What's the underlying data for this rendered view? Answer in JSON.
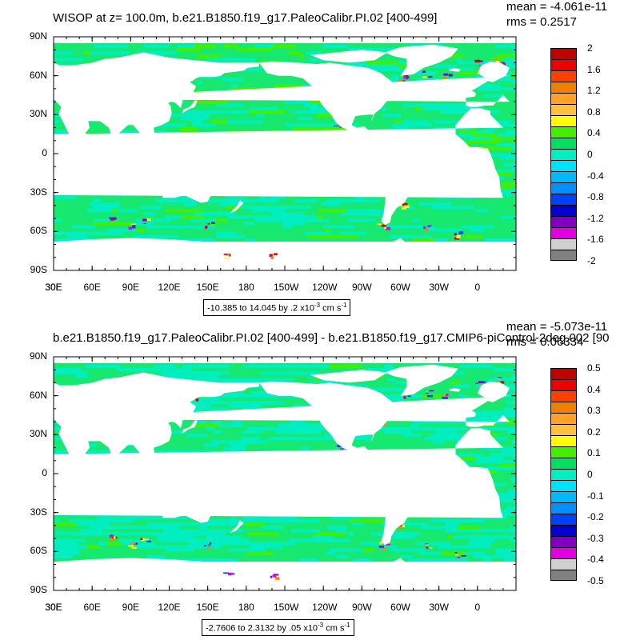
{
  "panel1": {
    "title": "WISOP at z= 100.0m, b.e21.B1850.f19_g17.PaleoCalibr.PI.02 [400-499]",
    "mean": "mean = -4.061e-11",
    "rms": "rms = 0.2517",
    "contour_info": "-10.385 to 14.045 by .2 x10",
    "contour_exp": "-3",
    "contour_units": " cm s",
    "contour_units_exp": "-1",
    "colorbar_labels": [
      "2",
      "1.6",
      "1.2",
      "0.8",
      "0.4",
      "0",
      "-0.4",
      "-0.8",
      "-1.2",
      "-1.6",
      "-2"
    ]
  },
  "panel2": {
    "title": "b.e21.B1850.f19_g17.PaleoCalibr.PI.02 [400-499] - b.e21.B1850.f19_g17.CMIP6-piControl-2deg.002 [90",
    "mean": "mean = -5.073e-11",
    "rms": "rms = 0.06334",
    "contour_info": "-2.7606 to 2.3132 by .05 x10",
    "contour_exp": "-3",
    "contour_units": " cm s",
    "contour_units_exp": "-1",
    "colorbar_labels": [
      "0.5",
      "0.4",
      "0.3",
      "0.2",
      "0.1",
      "0",
      "-0.1",
      "-0.2",
      "-0.3",
      "-0.4",
      "-0.5"
    ]
  },
  "axes": {
    "lat_labels": [
      "90N",
      "60N",
      "30N",
      "0",
      "30S",
      "60S",
      "90S"
    ],
    "lon_labels": [
      "30E",
      "60E",
      "90E",
      "120E",
      "150E",
      "180",
      "150W",
      "120W",
      "90W",
      "60W",
      "30W",
      "0",
      "30E"
    ]
  },
  "colors": {
    "scale": [
      "#c00000",
      "#ee0000",
      "#ff4000",
      "#f08000",
      "#ffa028",
      "#ffc040",
      "#ffff00",
      "#44ee00",
      "#00e060",
      "#00eec0",
      "#00e0ff",
      "#00b8ff",
      "#0090ff",
      "#0040ff",
      "#0000d0",
      "#8000c0",
      "#e000e0",
      "#d0d0d0",
      "#808080"
    ],
    "ocean_background": "#17e870",
    "land": "#ffffff"
  }
}
